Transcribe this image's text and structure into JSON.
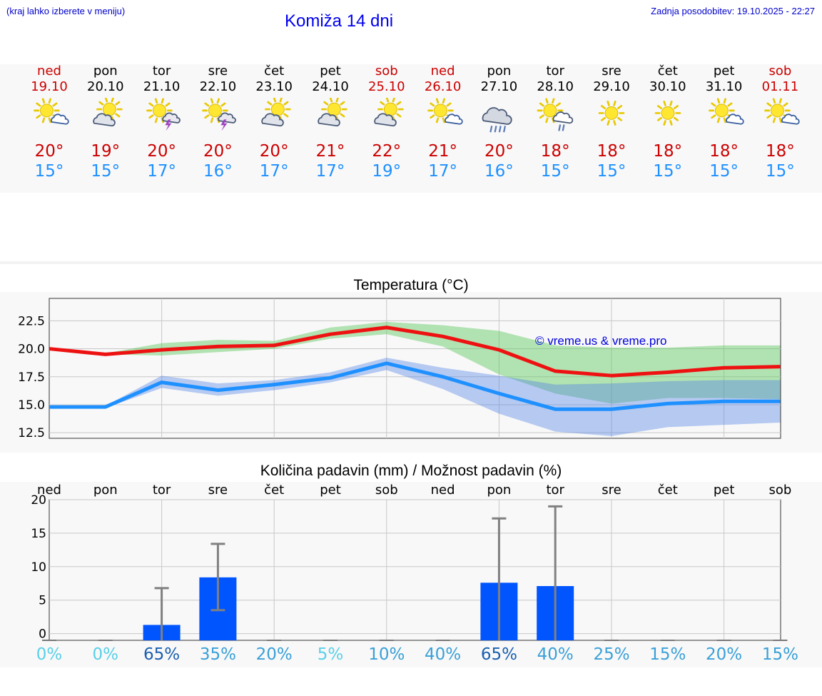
{
  "header": {
    "hint": "(kraj lahko izberete v meniju)",
    "title": "Komiža 14 dni",
    "updated": "Zadnja posodobitev: 19.10.2025 - 22:27"
  },
  "colors": {
    "weekend": "#cc0000",
    "weekday": "#000000",
    "max": "#cc0000",
    "min": "#1e90ff"
  },
  "days": [
    {
      "name": "ned",
      "date": "19.10",
      "weekend": true,
      "icon": "sun-small-cloud-icon",
      "tmax": "20°",
      "tmin": "15°",
      "pct": "0%"
    },
    {
      "name": "pon",
      "date": "20.10",
      "weekend": false,
      "icon": "cloud-sun-icon",
      "tmax": "19°",
      "tmin": "15°",
      "pct": "0%"
    },
    {
      "name": "tor",
      "date": "21.10",
      "weekend": false,
      "icon": "sun-thunder-icon",
      "tmax": "20°",
      "tmin": "17°",
      "pct": "65%"
    },
    {
      "name": "sre",
      "date": "22.10",
      "weekend": false,
      "icon": "sun-thunder-icon",
      "tmax": "20°",
      "tmin": "16°",
      "pct": "35%"
    },
    {
      "name": "čet",
      "date": "23.10",
      "weekend": false,
      "icon": "cloud-sun-icon",
      "tmax": "20°",
      "tmin": "17°",
      "pct": "20%"
    },
    {
      "name": "pet",
      "date": "24.10",
      "weekend": false,
      "icon": "cloud-sun-icon",
      "tmax": "21°",
      "tmin": "17°",
      "pct": "5%"
    },
    {
      "name": "sob",
      "date": "25.10",
      "weekend": true,
      "icon": "cloud-sun-icon",
      "tmax": "22°",
      "tmin": "19°",
      "pct": "10%"
    },
    {
      "name": "ned",
      "date": "26.10",
      "weekend": true,
      "icon": "sun-small-cloud-icon",
      "tmax": "21°",
      "tmin": "17°",
      "pct": "40%"
    },
    {
      "name": "pon",
      "date": "27.10",
      "weekend": false,
      "icon": "cloud-rain-icon",
      "tmax": "20°",
      "tmin": "16°",
      "pct": "65%"
    },
    {
      "name": "tor",
      "date": "28.10",
      "weekend": false,
      "icon": "sun-cloud-rain-icon",
      "tmax": "18°",
      "tmin": "15°",
      "pct": "40%"
    },
    {
      "name": "sre",
      "date": "29.10",
      "weekend": false,
      "icon": "sun-icon",
      "tmax": "18°",
      "tmin": "15°",
      "pct": "25%"
    },
    {
      "name": "čet",
      "date": "30.10",
      "weekend": false,
      "icon": "sun-icon",
      "tmax": "18°",
      "tmin": "15°",
      "pct": "15%"
    },
    {
      "name": "pet",
      "date": "31.10",
      "weekend": false,
      "icon": "sun-small-cloud-icon",
      "tmax": "18°",
      "tmin": "15°",
      "pct": "20%"
    },
    {
      "name": "sob",
      "date": "01.11",
      "weekend": true,
      "icon": "sun-small-cloud-icon",
      "tmax": "18°",
      "tmin": "15°",
      "pct": "15%"
    }
  ],
  "chart_data": [
    {
      "type": "line",
      "title": "Temperatura (°C)",
      "watermark": "© vreme.us & vreme.pro",
      "ylim": [
        12,
        24.5
      ],
      "yticks": [
        "12.5",
        "15.0",
        "17.5",
        "20.0",
        "22.5"
      ],
      "ytick_values": [
        12.5,
        15.0,
        17.5,
        20.0,
        22.5
      ],
      "x": [
        0,
        1,
        2,
        3,
        4,
        5,
        6,
        7,
        8,
        9,
        10,
        11,
        12,
        13
      ],
      "series": [
        {
          "name": "max",
          "color": "#ee1111",
          "values": [
            20.0,
            19.5,
            19.9,
            20.2,
            20.3,
            21.3,
            21.9,
            21.1,
            19.9,
            18.0,
            17.6,
            17.9,
            18.3,
            18.4
          ],
          "band_low": [
            20.0,
            19.5,
            19.4,
            19.7,
            20.0,
            20.9,
            21.3,
            20.2,
            17.7,
            16.0,
            15.1,
            15.6,
            15.6,
            15.5
          ],
          "band_high": [
            20.0,
            19.6,
            20.5,
            20.8,
            20.7,
            21.9,
            22.4,
            22.1,
            21.6,
            20.3,
            20.1,
            20.1,
            20.3,
            20.3
          ]
        },
        {
          "name": "min",
          "color": "#1e90ff",
          "values": [
            14.8,
            14.8,
            17.0,
            16.3,
            16.8,
            17.4,
            18.7,
            17.5,
            16.0,
            14.6,
            14.6,
            15.1,
            15.3,
            15.3
          ],
          "band_low": [
            14.7,
            14.7,
            16.5,
            15.8,
            16.3,
            17.0,
            18.1,
            16.4,
            14.2,
            12.6,
            12.2,
            13.0,
            13.2,
            13.4
          ],
          "band_high": [
            14.9,
            14.9,
            17.6,
            16.9,
            17.2,
            17.9,
            19.2,
            18.3,
            17.6,
            16.8,
            16.9,
            17.1,
            17.2,
            17.2
          ]
        }
      ]
    },
    {
      "type": "bar",
      "title": "Količina padavin (mm) / Možnost padavin (%)",
      "categories": [
        "ned",
        "pon",
        "tor",
        "sre",
        "čet",
        "pet",
        "sob",
        "ned",
        "pon",
        "tor",
        "sre",
        "čet",
        "pet",
        "sob"
      ],
      "ylim": [
        -1,
        20
      ],
      "yticks": [
        "0",
        "5",
        "10",
        "15",
        "20"
      ],
      "ytick_values": [
        0,
        5,
        10,
        15,
        20
      ],
      "values": [
        0,
        0,
        1.3,
        8.4,
        0,
        0,
        0,
        0,
        7.6,
        7.1,
        0,
        0,
        0,
        0
      ],
      "error_low": [
        0,
        0,
        0,
        3.5,
        0,
        0,
        0,
        0,
        0,
        0,
        0,
        0,
        0,
        0
      ],
      "error_high": [
        0,
        0,
        6.8,
        13.4,
        0,
        0,
        0,
        0,
        17.2,
        19.0,
        0,
        0,
        0,
        0
      ],
      "bar_color": "#0055ff",
      "probability": [
        "0%",
        "0%",
        "65%",
        "35%",
        "20%",
        "5%",
        "10%",
        "40%",
        "65%",
        "40%",
        "25%",
        "15%",
        "20%",
        "15%"
      ],
      "probability_colors": [
        "#5ad0e8",
        "#5ad0e8",
        "#1a5fb0",
        "#3aa0d8",
        "#3aa0d8",
        "#5ad0e8",
        "#3aa0d8",
        "#3aa0d8",
        "#1a5fb0",
        "#3aa0d8",
        "#3aa0d8",
        "#3aa0d8",
        "#3aa0d8",
        "#3aa0d8"
      ]
    }
  ]
}
